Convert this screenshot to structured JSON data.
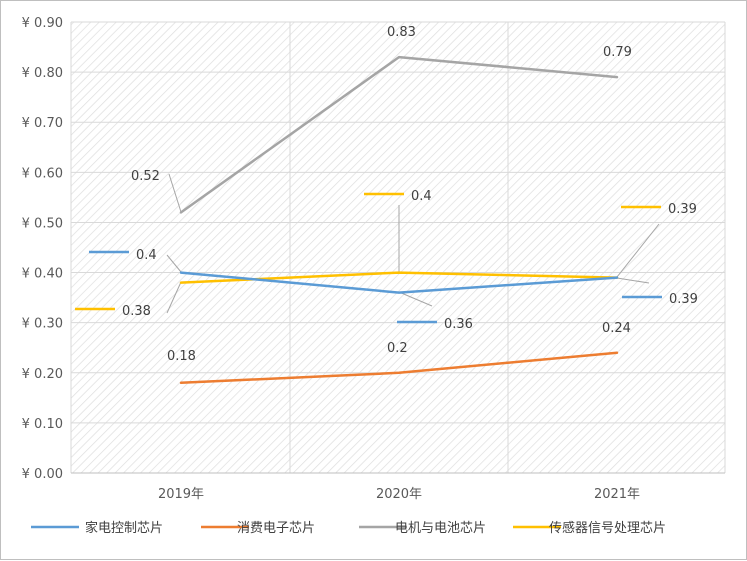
{
  "chart_data": {
    "type": "line",
    "categories": [
      "2019年",
      "2020年",
      "2021年"
    ],
    "y_tick_labels": [
      "¥ 0.00",
      "¥ 0.10",
      "¥ 0.20",
      "¥ 0.30",
      "¥ 0.40",
      "¥ 0.50",
      "¥ 0.60",
      "¥ 0.70",
      "¥ 0.80",
      "¥ 0.90"
    ],
    "ylim": [
      0,
      0.9
    ],
    "grid": true,
    "legend_position": "bottom",
    "series": [
      {
        "name": "家电控制芯片",
        "values": [
          0.4,
          0.36,
          0.39
        ],
        "labels": [
          "0.4",
          "0.36",
          "0.39"
        ],
        "color": "#5b9bd5"
      },
      {
        "name": "消费电子芯片",
        "values": [
          0.18,
          0.2,
          0.24
        ],
        "labels": [
          "0.18",
          "0.2",
          "0.24"
        ],
        "color": "#ed7d31"
      },
      {
        "name": "电机与电池芯片",
        "values": [
          0.52,
          0.83,
          0.79
        ],
        "labels": [
          "0.52",
          "0.83",
          "0.79"
        ],
        "color": "#a5a5a5"
      },
      {
        "name": "传感器信号处理芯片",
        "values": [
          0.38,
          0.4,
          0.39
        ],
        "labels": [
          "0.38",
          "0.4",
          "0.39"
        ],
        "color": "#ffc000"
      }
    ]
  }
}
